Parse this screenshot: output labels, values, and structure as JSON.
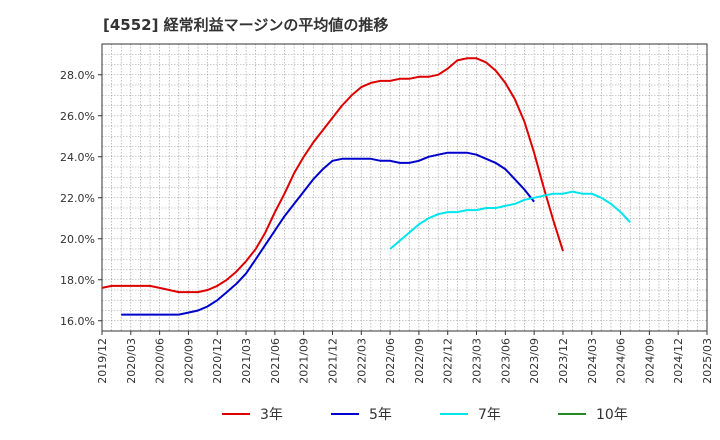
{
  "chart_data": {
    "type": "line",
    "title": "[4552]  経常利益マージンの平均値の推移",
    "xlabel": "",
    "ylabel": "",
    "ylim": [
      15.5,
      29.5
    ],
    "y_ticks": [
      "16.0%",
      "18.0%",
      "20.0%",
      "22.0%",
      "24.0%",
      "26.0%",
      "28.0%"
    ],
    "y_tick_values": [
      16,
      18,
      20,
      22,
      24,
      26,
      28
    ],
    "x_ticks": [
      "2019/12",
      "2020/03",
      "2020/06",
      "2020/09",
      "2020/12",
      "2021/03",
      "2021/06",
      "2021/09",
      "2021/12",
      "2022/03",
      "2022/06",
      "2022/09",
      "2022/12",
      "2023/03",
      "2023/06",
      "2023/09",
      "2023/12",
      "2024/03",
      "2024/06",
      "2024/09",
      "2024/12",
      "2025/03"
    ],
    "grid": true,
    "legend_position": "bottom",
    "series": [
      {
        "name": "3年",
        "color": "#dd0000",
        "start_index": 0,
        "values": [
          17.6,
          17.7,
          17.7,
          17.7,
          17.7,
          17.7,
          17.6,
          17.5,
          17.4,
          17.4,
          17.4,
          17.5,
          17.7,
          18.0,
          18.4,
          18.9,
          19.5,
          20.3,
          21.3,
          22.2,
          23.2,
          24.0,
          24.7,
          25.3,
          25.9,
          26.5,
          27.0,
          27.4,
          27.6,
          27.7,
          27.7,
          27.8,
          27.8,
          27.9,
          27.9,
          28.0,
          28.3,
          28.7,
          28.8,
          28.8,
          28.6,
          28.2,
          27.6,
          26.8,
          25.7,
          24.2,
          22.5,
          20.9,
          19.4
        ]
      },
      {
        "name": "5年",
        "color": "#0000cc",
        "start_index": 2,
        "values": [
          16.3,
          16.3,
          16.3,
          16.3,
          16.3,
          16.3,
          16.3,
          16.4,
          16.5,
          16.7,
          17.0,
          17.4,
          17.8,
          18.3,
          19.0,
          19.7,
          20.4,
          21.1,
          21.7,
          22.3,
          22.9,
          23.4,
          23.8,
          23.9,
          23.9,
          23.9,
          23.9,
          23.8,
          23.8,
          23.7,
          23.7,
          23.8,
          24.0,
          24.1,
          24.2,
          24.2,
          24.2,
          24.1,
          23.9,
          23.7,
          23.4,
          22.9,
          22.4,
          21.8
        ]
      },
      {
        "name": "7年",
        "color": "#00e5ee",
        "start_index": 30,
        "values": [
          19.5,
          19.9,
          20.3,
          20.7,
          21.0,
          21.2,
          21.3,
          21.3,
          21.4,
          21.4,
          21.5,
          21.5,
          21.6,
          21.7,
          21.9,
          22.0,
          22.1,
          22.2,
          22.2,
          22.3,
          22.2,
          22.2,
          22.0,
          21.7,
          21.3,
          20.8
        ]
      },
      {
        "name": "10年",
        "color": "#228b22",
        "start_index": 0,
        "values": []
      }
    ]
  }
}
